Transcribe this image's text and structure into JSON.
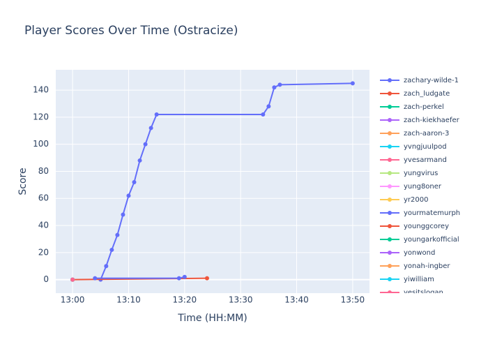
{
  "chart_data": {
    "type": "line",
    "title": "Player Scores Over Time (Ostracize)",
    "x_label": "Time (HH:MM)",
    "y_label": "Score",
    "xlim": [
      "12:57",
      "13:53"
    ],
    "xticks": [
      "13:00",
      "13:10",
      "13:20",
      "13:30",
      "13:40",
      "13:50"
    ],
    "ylim": [
      -10,
      155
    ],
    "yticks": [
      0,
      20,
      40,
      60,
      80,
      100,
      120,
      140
    ],
    "grid": true,
    "series": [
      {
        "name": "zachary-wilde-1",
        "color": "#636efa",
        "x": [
          "13:05",
          "13:06",
          "13:07",
          "13:08",
          "13:09",
          "13:10",
          "13:11",
          "13:12",
          "13:13",
          "13:14",
          "13:15",
          "13:34",
          "13:35",
          "13:36",
          "13:37",
          "13:50"
        ],
        "values": [
          0,
          10,
          22,
          33,
          48,
          62,
          72,
          88,
          100,
          112,
          122,
          122,
          128,
          142,
          144,
          145
        ]
      },
      {
        "name": "zach_ludgate",
        "color": "#EF553B",
        "x": [
          "13:00",
          "13:24"
        ],
        "values": [
          0,
          1
        ]
      },
      {
        "name": "zach-perkel",
        "color": "#00cc96",
        "x": [
          "13:00"
        ],
        "values": [
          0
        ]
      },
      {
        "name": "zach-kiekhaefer",
        "color": "#ab63fa",
        "x": [
          "13:00"
        ],
        "values": [
          0
        ]
      },
      {
        "name": "zach-aaron-3",
        "color": "#FFA15A",
        "x": [
          "13:00"
        ],
        "values": [
          0
        ]
      },
      {
        "name": "yvngjuulpod",
        "color": "#19d3f3",
        "x": [
          "13:00"
        ],
        "values": [
          0
        ]
      },
      {
        "name": "yvesarmand",
        "color": "#FF6692",
        "x": [
          "13:00"
        ],
        "values": [
          0
        ]
      },
      {
        "name": "yungvirus",
        "color": "#B6E880",
        "x": [
          "13:00"
        ],
        "values": [
          0
        ]
      },
      {
        "name": "yung8oner",
        "color": "#FF97FF",
        "x": [
          "13:00"
        ],
        "values": [
          0
        ]
      },
      {
        "name": "yr2000",
        "color": "#FECB52",
        "x": [
          "13:00"
        ],
        "values": [
          0
        ]
      },
      {
        "name": "yourmatemurph",
        "color": "#636efa",
        "x": [
          "13:04",
          "13:19",
          "13:20"
        ],
        "values": [
          1,
          1,
          2
        ]
      },
      {
        "name": "younggcorey",
        "color": "#EF553B",
        "x": [
          "13:00"
        ],
        "values": [
          0
        ]
      },
      {
        "name": "youngarkofficial",
        "color": "#00cc96",
        "x": [
          "13:00"
        ],
        "values": [
          0
        ]
      },
      {
        "name": "yonwond",
        "color": "#ab63fa",
        "x": [
          "13:00"
        ],
        "values": [
          0
        ]
      },
      {
        "name": "yonah-ingber",
        "color": "#FFA15A",
        "x": [
          "13:00"
        ],
        "values": [
          0
        ]
      },
      {
        "name": "yiwilliam",
        "color": "#19d3f3",
        "x": [
          "13:00"
        ],
        "values": [
          0
        ]
      },
      {
        "name": "yesitslogan",
        "color": "#FF6692",
        "x": [
          "13:00"
        ],
        "values": [
          0
        ]
      }
    ]
  }
}
